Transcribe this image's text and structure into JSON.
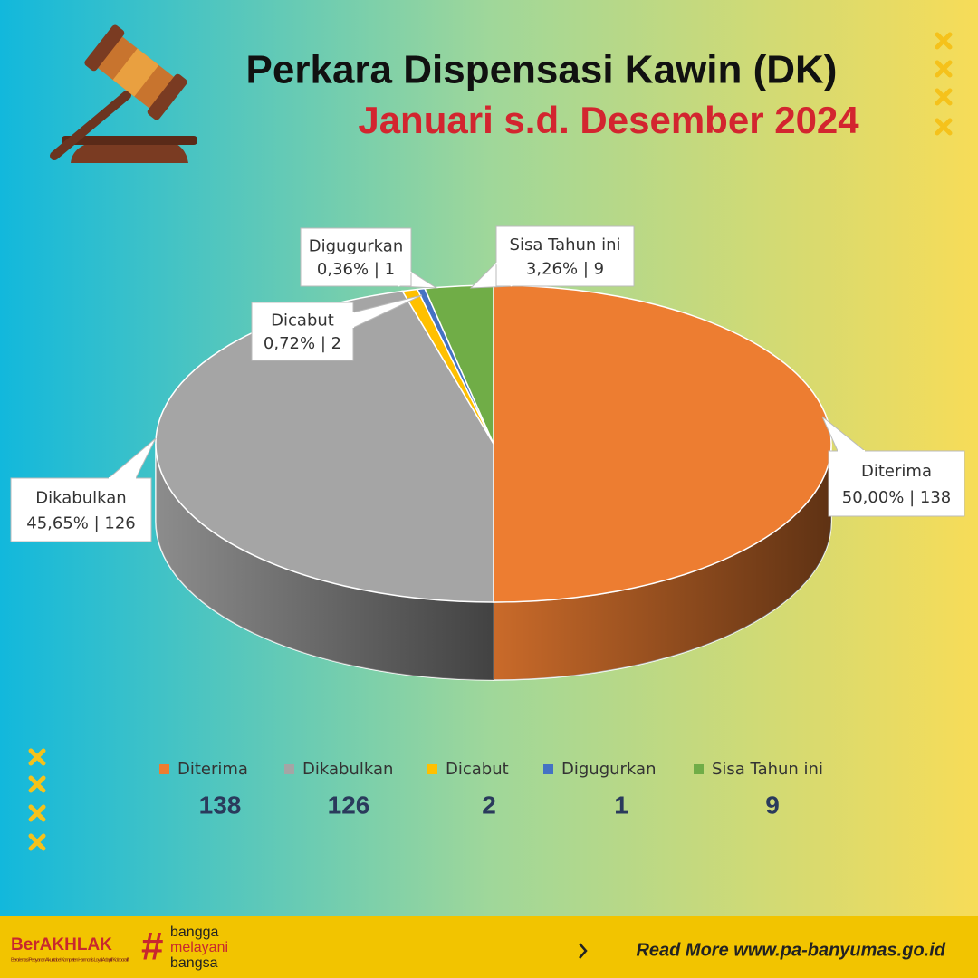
{
  "chart_data": {
    "type": "pie",
    "title": "Perkara Dispensasi Kawin (DK)",
    "subtitle": "Januari s.d. Desember 2024",
    "categories": [
      "Diterima",
      "Dikabulkan",
      "Dicabut",
      "Digugurkan",
      "Sisa Tahun ini"
    ],
    "values": [
      138,
      126,
      2,
      1,
      9
    ],
    "value_labels": [
      "50,00% | 138",
      "45,65% | 126",
      "0,72% | 2",
      "0,36% | 1",
      "3,26% | 9"
    ],
    "colors": [
      "#ed7d31",
      "#a5a5a5",
      "#ffc000",
      "#4472c4",
      "#70ad47"
    ],
    "legend": "bottom"
  },
  "footer": {
    "brand": "BerAKHLAK",
    "brand_tagline": "Berorientasi Pelayanan Akuntabel Kompeten Harmonis Loyal Adaptif Kolaboratif",
    "slogan": [
      "bangga",
      "melayani",
      "bangsa"
    ],
    "link": "Read More www.pa-banyumas.go.id"
  }
}
